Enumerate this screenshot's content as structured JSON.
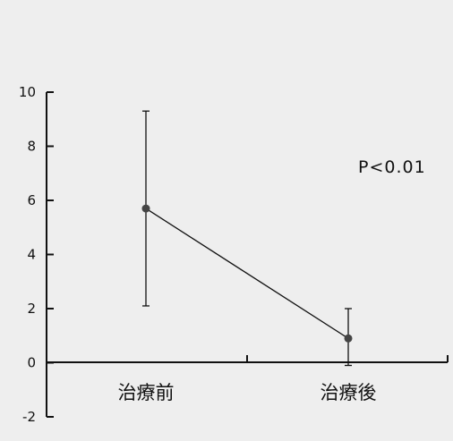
{
  "chart_data": {
    "type": "line",
    "title": "",
    "xlabel": "",
    "ylabel": "",
    "categories": [
      "治療前",
      "治療後"
    ],
    "series": [
      {
        "values": [
          5.7,
          0.9
        ],
        "error_low": [
          2.1,
          -0.1
        ],
        "error_high": [
          9.3,
          2.0
        ]
      }
    ],
    "ylim": [
      -2,
      10
    ],
    "yticks": [
      "10",
      "8",
      "6",
      "4",
      "2",
      "0",
      "-2"
    ],
    "grid": false,
    "annotation": "P<0.01",
    "colors": {
      "background": "#eeeeee",
      "line": "#111111",
      "marker": "#444444"
    }
  }
}
